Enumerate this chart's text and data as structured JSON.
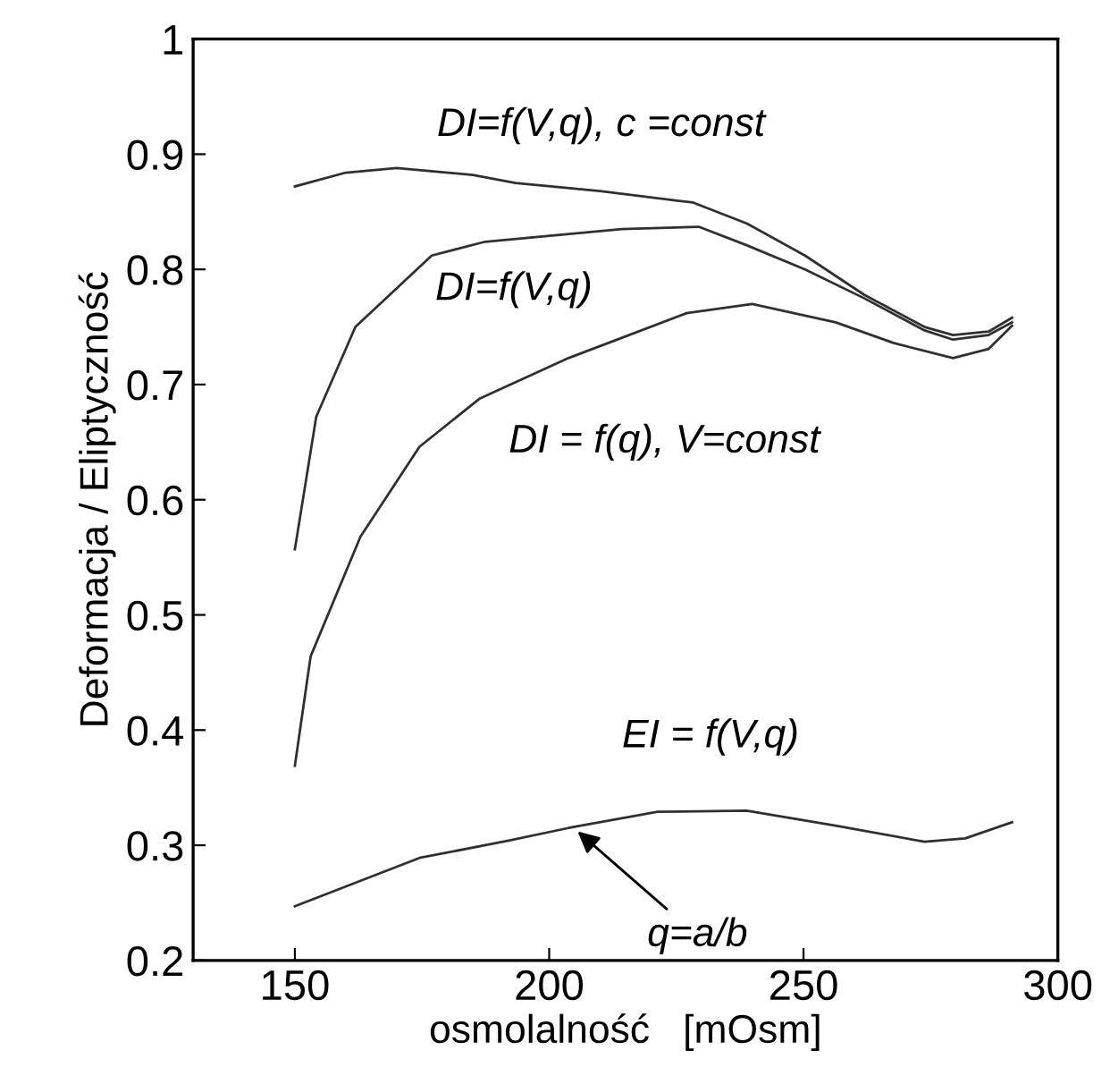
{
  "chart_data": {
    "type": "line",
    "xlabel": "osmolalność   [mOsm]",
    "ylabel": "Deformacja / Eliptyczność",
    "xlim": [
      130,
      300
    ],
    "ylim": [
      0.2,
      1
    ],
    "xticks": [
      150,
      200,
      250,
      300
    ],
    "yticks": [
      0.2,
      0.3,
      0.4,
      0.5,
      0.6,
      0.7,
      0.8,
      0.9,
      1
    ],
    "grid": false,
    "marker": "none",
    "line_style": "solid",
    "series": [
      {
        "name": "DI=f(V,q), c =const",
        "color": "#303030",
        "x": [
          150,
          160,
          170,
          185,
          193.4,
          210,
          228.3,
          238.8,
          250.3,
          261.9,
          273.8,
          279.4,
          286.4,
          291
        ],
        "values": [
          0.872,
          0.884,
          0.888,
          0.882,
          0.875,
          0.868,
          0.858,
          0.84,
          0.812,
          0.778,
          0.75,
          0.743,
          0.746,
          0.758
        ]
      },
      {
        "name": "DI=f(V,q)",
        "color": "#303030",
        "x": [
          150,
          154.2,
          161.9,
          176.9,
          187.4,
          214.3,
          229.4,
          238.8,
          250.3,
          261.9,
          273.8,
          279.4,
          286.4,
          291
        ],
        "values": [
          0.557,
          0.672,
          0.75,
          0.812,
          0.824,
          0.835,
          0.837,
          0.821,
          0.8,
          0.775,
          0.747,
          0.739,
          0.743,
          0.754
        ]
      },
      {
        "name": "DI = f(q), V=const",
        "color": "#303030",
        "x": [
          150,
          153.1,
          162.9,
          174.5,
          186.4,
          203.8,
          227,
          239.9,
          256.3,
          267.8,
          279.4,
          286.4,
          291
        ],
        "values": [
          0.369,
          0.464,
          0.568,
          0.646,
          0.688,
          0.723,
          0.762,
          0.77,
          0.754,
          0.736,
          0.723,
          0.731,
          0.751
        ]
      },
      {
        "name": "EI = f(V,q)",
        "color": "#303030",
        "x": [
          150,
          174.5,
          192,
          203.8,
          221.3,
          238.8,
          256.3,
          273.8,
          281.8,
          291
        ],
        "values": [
          0.247,
          0.289,
          0.304,
          0.315,
          0.329,
          0.33,
          0.317,
          0.303,
          0.306,
          0.32
        ]
      }
    ],
    "annotations": [
      {
        "text": "q=a/b",
        "x": 205.6,
        "y": 0.312
      }
    ]
  }
}
